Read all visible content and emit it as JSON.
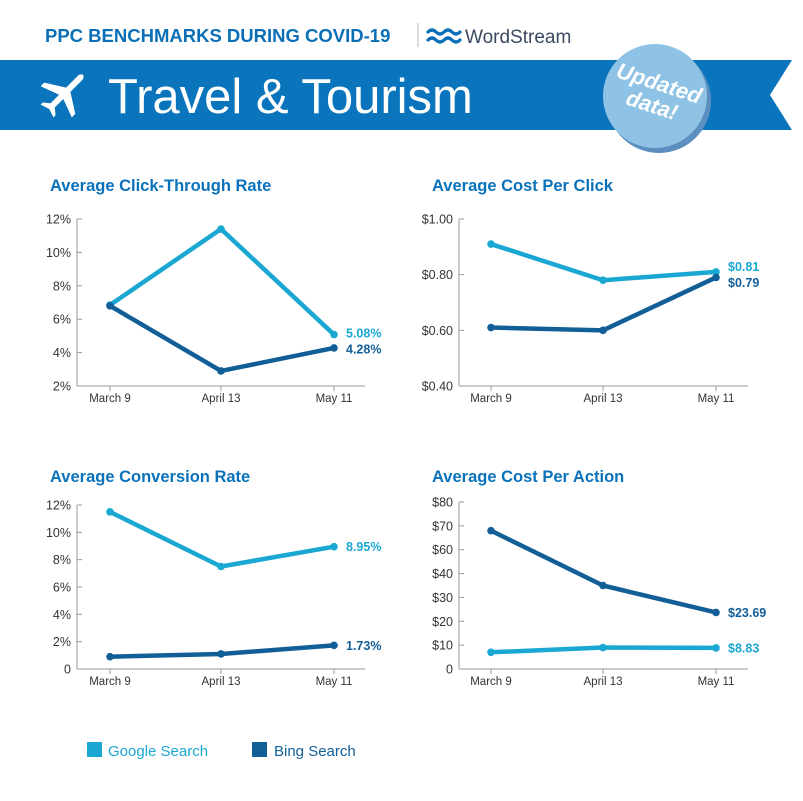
{
  "header": {
    "kicker": "PPC BENCHMARKS DURING COVID-19",
    "brand": "WordStream",
    "title": "Travel & Tourism",
    "badge_line1": "Updated",
    "badge_line2": "data!",
    "icons": [
      "airplane-icon",
      "wordstream-waves-logo"
    ]
  },
  "colors": {
    "google": "#1aa8d2",
    "bing": "#125f98",
    "banner": "#0a75bc",
    "badge": "#8fc3e5"
  },
  "legend": [
    {
      "name": "Google Search",
      "color": "#1aa8d2"
    },
    {
      "name": "Bing Search",
      "color": "#125f98"
    }
  ],
  "chart_data": [
    {
      "type": "line",
      "title": "Average Click-Through Rate",
      "categories": [
        "March 9",
        "April 13",
        "May 11"
      ],
      "yticks": [
        "2%",
        "4%",
        "6%",
        "8%",
        "10%",
        "12%"
      ],
      "ytick_values": [
        2,
        4,
        6,
        8,
        10,
        12
      ],
      "ylim": [
        2,
        12
      ],
      "series": [
        {
          "name": "Google Search",
          "values": [
            6.85,
            11.4,
            5.08
          ],
          "end_label": "5.08%"
        },
        {
          "name": "Bing Search",
          "values": [
            6.8,
            2.9,
            4.28
          ],
          "end_label": "4.28%"
        }
      ]
    },
    {
      "type": "line",
      "title": "Average Cost Per Click",
      "categories": [
        "March 9",
        "April 13",
        "May 11"
      ],
      "yticks": [
        "$0.40",
        "$0.60",
        "$0.80",
        "$1.00"
      ],
      "ytick_values": [
        0.4,
        0.6,
        0.8,
        1.0
      ],
      "ylim": [
        0.4,
        1.0
      ],
      "series": [
        {
          "name": "Google Search",
          "values": [
            0.91,
            0.78,
            0.81
          ],
          "end_label": "$0.81"
        },
        {
          "name": "Bing Search",
          "values": [
            0.61,
            0.6,
            0.79
          ],
          "end_label": "$0.79"
        }
      ]
    },
    {
      "type": "line",
      "title": "Average Conversion Rate",
      "categories": [
        "March 9",
        "April 13",
        "May 11"
      ],
      "yticks": [
        "0",
        "2%",
        "4%",
        "6%",
        "8%",
        "10%",
        "12%"
      ],
      "ytick_values": [
        0,
        2,
        4,
        6,
        8,
        10,
        12
      ],
      "ylim": [
        0,
        12
      ],
      "series": [
        {
          "name": "Google Search",
          "values": [
            11.5,
            7.5,
            8.95
          ],
          "end_label": "8.95%"
        },
        {
          "name": "Bing Search",
          "values": [
            0.9,
            1.1,
            1.73
          ],
          "end_label": "1.73%"
        }
      ]
    },
    {
      "type": "line",
      "title": "Average Cost Per Action",
      "categories": [
        "March 9",
        "April 13",
        "May 11"
      ],
      "yticks": [
        "0",
        "$10",
        "$20",
        "$30",
        "$40",
        "$60",
        "$70",
        "$80"
      ],
      "ytick_values": [
        0,
        10,
        20,
        30,
        40,
        60,
        70,
        80
      ],
      "ylim": [
        0,
        80
      ],
      "series": [
        {
          "name": "Google Search",
          "values": [
            7,
            9,
            8.83
          ],
          "end_label": "$8.83"
        },
        {
          "name": "Bing Search",
          "values": [
            68,
            35,
            23.69
          ],
          "end_label": "$23.69"
        }
      ]
    }
  ]
}
